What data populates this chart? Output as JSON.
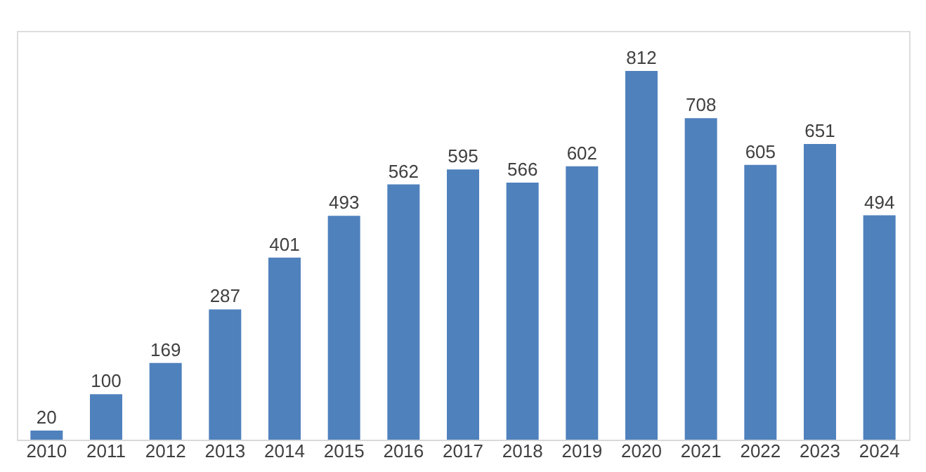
{
  "chart_data": {
    "type": "bar",
    "categories": [
      "2010",
      "2011",
      "2012",
      "2013",
      "2014",
      "2015",
      "2016",
      "2017",
      "2018",
      "2019",
      "2020",
      "2021",
      "2022",
      "2023",
      "2024"
    ],
    "values": [
      20,
      100,
      169,
      287,
      401,
      493,
      562,
      595,
      566,
      602,
      812,
      708,
      605,
      651,
      494
    ],
    "color": "#4f81bd",
    "data_labels": true,
    "grid": false,
    "tick_labels": "x"
  }
}
